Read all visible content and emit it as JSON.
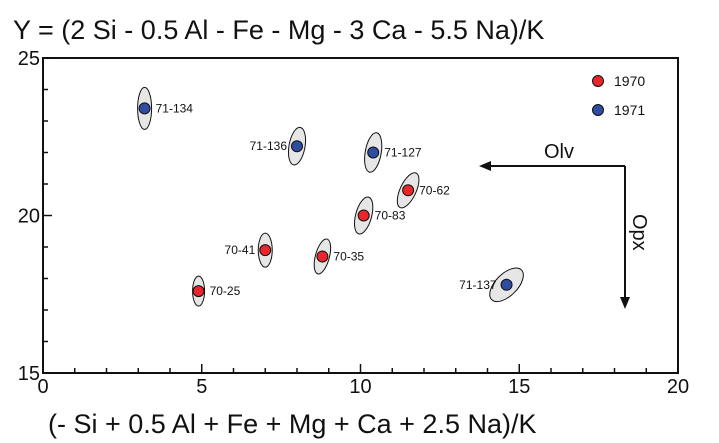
{
  "chart_data": {
    "type": "scatter",
    "title": "Y = (2 Si - 0.5 Al - Fe - Mg - 3 Ca - 5.5 Na)/K",
    "xlabel": "(- Si + 0.5 Al + Fe + Mg + Ca + 2.5 Na)/K",
    "ylabel": "",
    "xlim": [
      0,
      20
    ],
    "ylim": [
      15,
      25
    ],
    "x_ticks": [
      "0",
      "5",
      "10",
      "15",
      "20"
    ],
    "y_ticks": [
      "15",
      "20",
      "25"
    ],
    "grid": false,
    "legend_position": "top-right",
    "series": [
      {
        "name": "1970",
        "color": "#e8262b",
        "points": [
          {
            "label": "70-25",
            "x": 4.9,
            "y": 17.6
          },
          {
            "label": "70-41",
            "x": 7.0,
            "y": 18.9
          },
          {
            "label": "70-35",
            "x": 8.8,
            "y": 18.7
          },
          {
            "label": "70-83",
            "x": 10.1,
            "y": 20.0
          },
          {
            "label": "70-62",
            "x": 11.5,
            "y": 20.8
          }
        ]
      },
      {
        "name": "1971",
        "color": "#2f4da0",
        "points": [
          {
            "label": "71-134",
            "x": 3.2,
            "y": 23.4
          },
          {
            "label": "71-136",
            "x": 8.0,
            "y": 22.2
          },
          {
            "label": "71-127",
            "x": 10.4,
            "y": 22.0
          },
          {
            "label": "71-137",
            "x": 14.6,
            "y": 17.8
          }
        ]
      }
    ],
    "arrows": [
      {
        "label": "Olv",
        "direction": "left"
      },
      {
        "label": "Opx",
        "direction": "down"
      }
    ]
  }
}
